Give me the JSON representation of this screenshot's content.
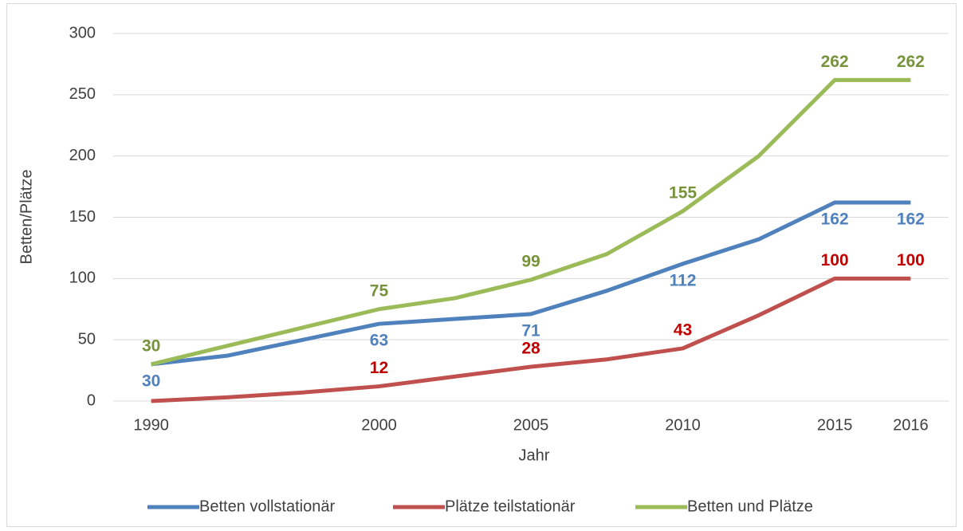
{
  "chart_data": {
    "type": "line",
    "x_label": "Jahr",
    "y_label": "Betten/Plätze",
    "categories": [
      "1990",
      null,
      null,
      "2000",
      null,
      "2005",
      null,
      "2010",
      null,
      "2015",
      "2016"
    ],
    "ylim": [
      0,
      300
    ],
    "yticks": [
      0,
      50,
      100,
      150,
      200,
      250,
      300
    ],
    "grid": true,
    "legend": "bottom",
    "series": [
      {
        "name": "Betten vollstationär",
        "color": "#4f81bd",
        "label_color": "#4f81bd",
        "label_position": "below",
        "values": [
          30,
          37,
          50,
          63,
          67,
          71,
          90,
          112,
          132,
          162,
          162
        ],
        "value_labels": [
          "30",
          null,
          null,
          "63",
          null,
          "71",
          null,
          "112",
          null,
          "162",
          "162"
        ]
      },
      {
        "name": "Plätze teilstationär",
        "color": "#c0504d",
        "label_color": "#c00000",
        "label_position": "above",
        "values": [
          0,
          3,
          7,
          12,
          20,
          28,
          34,
          43,
          70,
          100,
          100
        ],
        "value_labels": [
          null,
          null,
          null,
          "12",
          null,
          "28",
          null,
          "43",
          null,
          "100",
          "100"
        ]
      },
      {
        "name": "Betten und Plätze",
        "color": "#9bbb59",
        "label_color": "#77933c",
        "label_position": "above",
        "values": [
          30,
          45,
          60,
          75,
          84,
          99,
          120,
          155,
          200,
          262,
          262
        ],
        "value_labels": [
          "30",
          null,
          null,
          "75",
          null,
          "99",
          null,
          "155",
          null,
          "262",
          "262"
        ]
      }
    ]
  }
}
